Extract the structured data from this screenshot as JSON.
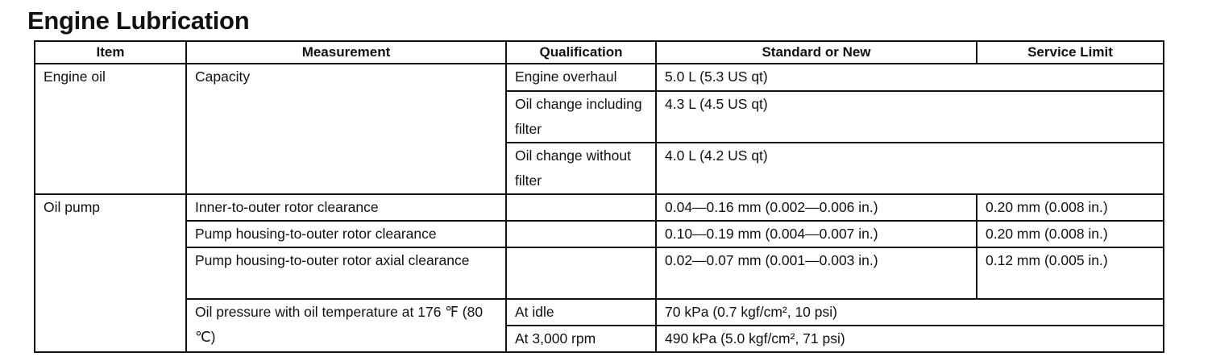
{
  "title": "Engine Lubrication",
  "table": {
    "headers": [
      "Item",
      "Measurement",
      "Qualification",
      "Standard or New",
      "Service Limit"
    ],
    "rows": {
      "engine_oil": {
        "item": "Engine oil",
        "measurement": "Capacity",
        "entries": [
          {
            "qualification": "Engine overhaul",
            "standard": "5.0 L (5.3 US qt)"
          },
          {
            "qualification": "Oil change including filter",
            "standard": "4.3 L (4.5 US qt)"
          },
          {
            "qualification": "Oil change without filter",
            "standard": "4.0 L (4.2 US qt)"
          }
        ]
      },
      "oil_pump": {
        "item": "Oil pump",
        "clearances": [
          {
            "measurement": "Inner-to-outer rotor clearance",
            "qualification": "",
            "standard": "0.04—0.16 mm (0.002—0.006 in.)",
            "limit": "0.20 mm (0.008 in.)"
          },
          {
            "measurement": "Pump housing-to-outer rotor clearance",
            "qualification": "",
            "standard": "0.10—0.19 mm (0.004—0.007 in.)",
            "limit": "0.20 mm (0.008 in.)"
          },
          {
            "measurement": "Pump housing-to-outer rotor axial clearance",
            "qualification": "",
            "standard": "0.02—0.07 mm (0.001—0.003 in.)",
            "limit": "0.12 mm (0.005 in.)"
          }
        ],
        "pressure": {
          "measurement": "Oil pressure with oil temperature at 176 ℉ (80 ℃)",
          "entries": [
            {
              "qualification": "At idle",
              "standard": "70 kPa (0.7 kgf/cm², 10 psi)"
            },
            {
              "qualification": "At 3,000 rpm",
              "standard": "490 kPa (5.0 kgf/cm², 71 psi)"
            }
          ]
        }
      }
    }
  }
}
